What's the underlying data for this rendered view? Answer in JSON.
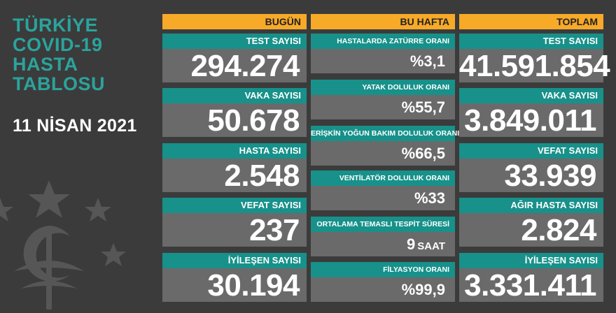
{
  "title": {
    "line1": "TÜRKİYE",
    "line2": "COVID-19",
    "line3": "HASTA",
    "line4": "TABLOSU"
  },
  "date": "11 NİSAN 2021",
  "colors": {
    "background": "#3b3b3b",
    "header_orange": "#f7a928",
    "label_teal": "#17918a",
    "title_teal": "#2ba39c",
    "value_gray": "#6a6a6a"
  },
  "today": {
    "header": "BUGÜN",
    "items": [
      {
        "label": "TEST SAYISI",
        "value": "294.274"
      },
      {
        "label": "VAKA SAYISI",
        "value": "50.678"
      },
      {
        "label": "HASTA SAYISI",
        "value": "2.548"
      },
      {
        "label": "VEFAT SAYISI",
        "value": "237"
      },
      {
        "label": "İYİLEŞEN SAYISI",
        "value": "30.194"
      }
    ]
  },
  "week": {
    "header": "BU HAFTA",
    "items": [
      {
        "label": "HASTALARDA ZATÜRRE ORANI",
        "value": "%3,1",
        "unit": ""
      },
      {
        "label": "YATAK DOLULUK ORANI",
        "value": "%55,7",
        "unit": ""
      },
      {
        "label": "ERİŞKİN YOĞUN BAKIM DOLULUK ORANI",
        "value": "%66,5",
        "unit": ""
      },
      {
        "label": "VENTİLATÖR DOLULUK ORANI",
        "value": "%33",
        "unit": ""
      },
      {
        "label": "ORTALAMA TEMASLI TESPİT SÜRESİ",
        "value": "9",
        "unit": "SAAT"
      },
      {
        "label": "FİLYASYON ORANI",
        "value": "%99,9",
        "unit": ""
      }
    ]
  },
  "total": {
    "header": "TOPLAM",
    "items": [
      {
        "label": "TEST SAYISI",
        "value": "41.591.854"
      },
      {
        "label": "VAKA SAYISI",
        "value": "3.849.011"
      },
      {
        "label": "VEFAT SAYISI",
        "value": "33.939"
      },
      {
        "label": "AĞIR HASTA SAYISI",
        "value": "2.824"
      },
      {
        "label": "İYİLEŞEN SAYISI",
        "value": "3.331.411"
      }
    ]
  }
}
